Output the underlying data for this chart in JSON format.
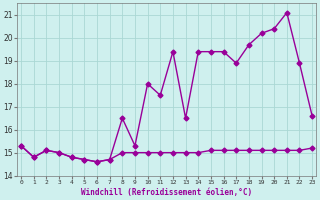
{
  "xlabel": "Windchill (Refroidissement éolien,°C)",
  "bg_color": "#cff0ee",
  "grid_color": "#aad8d4",
  "line_color": "#990099",
  "x_hours": [
    0,
    1,
    2,
    3,
    4,
    5,
    6,
    7,
    8,
    9,
    10,
    11,
    12,
    13,
    14,
    15,
    16,
    17,
    18,
    19,
    20,
    21,
    22,
    23
  ],
  "temp_line": [
    15.3,
    14.8,
    15.1,
    15.0,
    14.8,
    14.7,
    14.6,
    14.7,
    16.5,
    15.3,
    18.0,
    17.5,
    19.4,
    16.5,
    19.4,
    19.4,
    19.4,
    18.9,
    19.7,
    20.2,
    20.4,
    21.1,
    18.9,
    16.6
  ],
  "windchill_line": [
    15.3,
    14.8,
    15.1,
    15.0,
    14.8,
    14.7,
    14.6,
    14.7,
    15.0,
    15.0,
    15.0,
    15.0,
    15.0,
    15.0,
    15.0,
    15.1,
    15.1,
    15.1,
    15.1,
    15.1,
    15.1,
    15.1,
    15.1,
    15.2
  ],
  "ylim": [
    14.0,
    21.5
  ],
  "yticks": [
    14,
    15,
    16,
    17,
    18,
    19,
    20,
    21
  ],
  "xlim": [
    -0.3,
    23.3
  ],
  "marker": "D",
  "marker_size": 2.5,
  "line_width": 1.0
}
